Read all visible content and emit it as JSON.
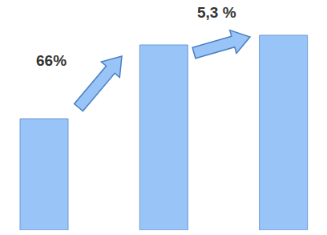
{
  "chart_data": {
    "type": "bar",
    "values": [
      139,
      231,
      243
    ],
    "color": "#99c4f7",
    "ylim": [
      0,
      250
    ],
    "tick_labels": false,
    "annotations": [
      "66%",
      "5,3 %"
    ]
  }
}
